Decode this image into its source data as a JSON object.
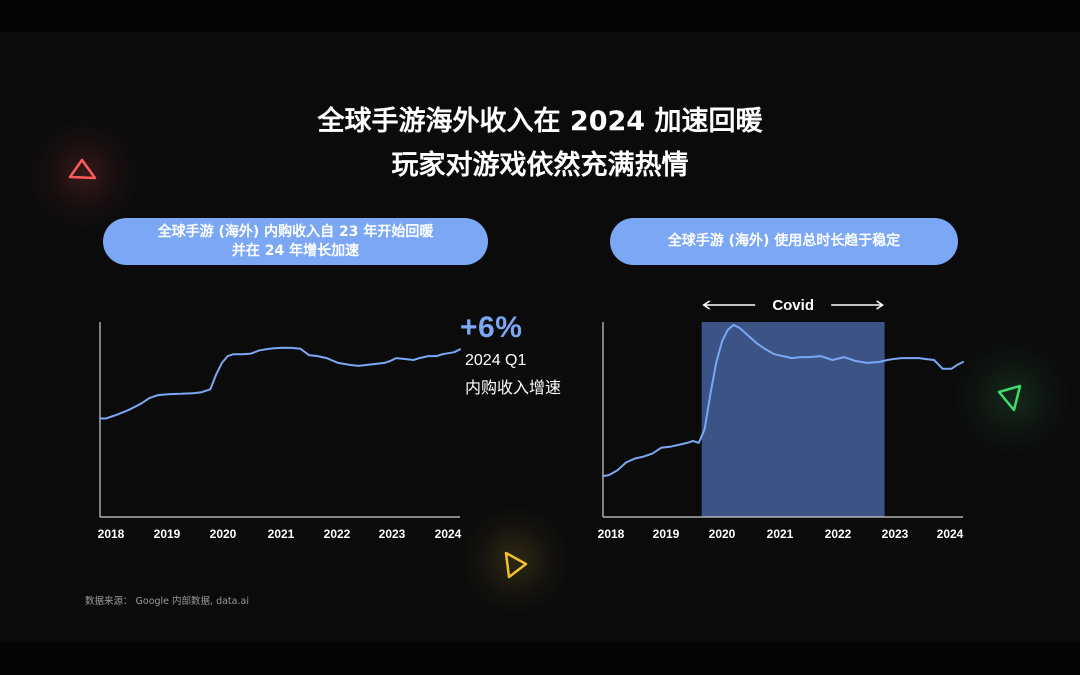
{
  "title": {
    "line1": "全球手游海外收入在 2024 加速回暖",
    "line2": "玩家对游戏依然充满热情"
  },
  "colors": {
    "accent": "#7ba7f5",
    "background": "#0b0b0c",
    "covid_band": "#3b5485"
  },
  "icons": [
    "triangle-red-icon",
    "triangle-yellow-icon",
    "triangle-green-icon"
  ],
  "left_panel": {
    "pill_line1": "全球手游 (海外) 内购收入自 23 年开始回暖",
    "pill_line2": "并在 24 年增长加速",
    "callout_value": "+6%",
    "callout_period": "2024 Q1",
    "callout_label": "内购收入增速"
  },
  "right_panel": {
    "pill_text": "全球手游 (海外) 使用总时长趋于稳定",
    "covid_label": "Covid"
  },
  "source": "数据来源： Google 内部数据, data.ai",
  "chart_data": [
    {
      "type": "line",
      "title": "全球手游 (海外) 内购收入自 23 年开始回暖 并在 24 年增长加速",
      "x_ticks": [
        "2018",
        "2019",
        "2020",
        "2021",
        "2022",
        "2023",
        "2024"
      ],
      "x_range": [
        2018.0,
        2024.2
      ],
      "y_range": [
        0,
        100
      ],
      "grid": false,
      "series": [
        {
          "x": [
            2018.0,
            2018.1,
            2018.3,
            2018.5,
            2018.7,
            2018.85,
            2019.0,
            2019.2,
            2019.4,
            2019.6,
            2019.75,
            2019.9,
            2020.0,
            2020.1,
            2020.2,
            2020.3,
            2020.45,
            2020.6,
            2020.75,
            2020.9,
            2021.0,
            2021.15,
            2021.3,
            2021.45,
            2021.6,
            2021.75,
            2021.9,
            2022.1,
            2022.3,
            2022.45,
            2022.6,
            2022.75,
            2022.9,
            2023.0,
            2023.1,
            2023.25,
            2023.4,
            2023.5,
            2023.65,
            2023.8,
            2023.9,
            2024.0,
            2024.1,
            2024.2
          ],
          "y": [
            50.5,
            50.5,
            52.5,
            55,
            58,
            61,
            62.5,
            63,
            63.2,
            63.5,
            64,
            65.5,
            73,
            79,
            82.5,
            83.5,
            83.5,
            83.8,
            85.5,
            86.2,
            86.5,
            86.8,
            86.7,
            86.3,
            83,
            82.5,
            81.5,
            79,
            78,
            77.5,
            78,
            78.5,
            79,
            80,
            81.5,
            81,
            80.5,
            81.5,
            82.5,
            82.5,
            83.5,
            84,
            84.5,
            86
          ]
        }
      ]
    },
    {
      "type": "line",
      "title": "全球手游 (海外) 使用总时长趋于稳定",
      "x_ticks": [
        "2018",
        "2019",
        "2020",
        "2021",
        "2022",
        "2023",
        "2024"
      ],
      "x_range": [
        2018.0,
        2024.2
      ],
      "y_range": [
        0,
        100
      ],
      "grid": false,
      "annotations": [
        {
          "label": "Covid",
          "x_start": 2019.7,
          "x_end": 2022.85
        }
      ],
      "series": [
        {
          "x": [
            2018.0,
            2018.1,
            2018.25,
            2018.4,
            2018.55,
            2018.7,
            2018.85,
            2019.0,
            2019.15,
            2019.3,
            2019.45,
            2019.55,
            2019.65,
            2019.75,
            2019.85,
            2019.95,
            2020.05,
            2020.15,
            2020.25,
            2020.35,
            2020.5,
            2020.65,
            2020.8,
            2020.95,
            2021.1,
            2021.25,
            2021.4,
            2021.55,
            2021.75,
            2021.95,
            2022.15,
            2022.35,
            2022.55,
            2022.75,
            2022.9,
            2023.0,
            2023.15,
            2023.3,
            2023.45,
            2023.55,
            2023.7,
            2023.85,
            2024.0,
            2024.1,
            2024.2
          ],
          "y": [
            21,
            21.5,
            24,
            28,
            30,
            31,
            32.5,
            35.5,
            36,
            37,
            38,
            39,
            38,
            45,
            63,
            79,
            90,
            96,
            98.5,
            97,
            93,
            89,
            86,
            83.5,
            82.5,
            81.5,
            82,
            82,
            82.5,
            80.5,
            82,
            80,
            79,
            79.5,
            80.5,
            81,
            81.5,
            81.5,
            81.5,
            81,
            80.5,
            76,
            76,
            78,
            79.5
          ]
        }
      ]
    }
  ]
}
